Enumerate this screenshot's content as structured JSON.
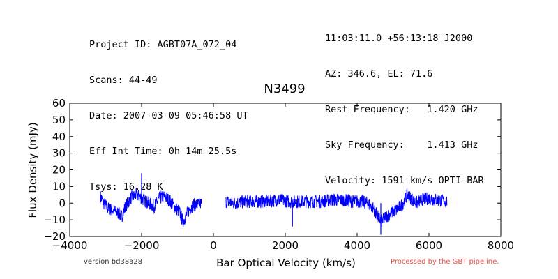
{
  "header_left": [
    "Project ID: AGBT07A_072_04",
    "Scans: 44-49",
    "Date: 2007-03-09 05:46:58 UT",
    "Eff Int Time: 0h 14m 25.5s",
    "Tsys: 16.28 K"
  ],
  "header_right": [
    "11:03:11.0 +56:13:18 J2000",
    "AZ: 346.6, EL: 71.6",
    "Rest Frequency:   1.420 GHz",
    "Sky Frequency:    1.413 GHz",
    "Velocity: 1591 km/s OPTI-BAR"
  ],
  "footer": {
    "version": "version bd38a28",
    "processed": "Processed by the GBT pipeline.",
    "processed_color": "#e8504a"
  },
  "chart_data": {
    "type": "line",
    "title": "N3499",
    "xlabel": "Bar Optical Velocity (km/s)",
    "ylabel": "Flux Density (mJy)",
    "xlim": [
      -4000,
      8000
    ],
    "ylim": [
      -20,
      60
    ],
    "xticks": [
      -4000,
      -2000,
      0,
      2000,
      4000,
      6000,
      8000
    ],
    "yticks": [
      -20,
      -10,
      0,
      10,
      20,
      30,
      40,
      50,
      60
    ],
    "xticklabels": [
      "−4000",
      "−2000",
      "0",
      "2000",
      "4000",
      "6000",
      "8000"
    ],
    "yticklabels": [
      "−20",
      "−10",
      "0",
      "10",
      "20",
      "30",
      "40",
      "50",
      "60"
    ],
    "grid": false,
    "line_color": "#0000ff",
    "series": [
      {
        "segments": [
          {
            "x": [
              -3150,
              -3050,
              -2950,
              -2800,
              -2650,
              -2550,
              -2450,
              -2300,
              -2150,
              -2050,
              -1950,
              -1800,
              -1650,
              -1500,
              -1350,
              -1200,
              -1050,
              -950,
              -850,
              -750,
              -650,
              -550,
              -450,
              -330
            ],
            "y": [
              4,
              0,
              -3,
              -4,
              -6,
              -8,
              -2,
              3,
              5,
              4,
              2,
              0,
              -2,
              3,
              4,
              1,
              -3,
              -5,
              -11,
              -7,
              -3,
              -1,
              -1,
              0
            ]
          },
          {
            "x": [
              350,
              600,
              900,
              1200,
              1500,
              1800,
              2100,
              2400,
              2700,
              3000,
              3300,
              3600,
              3900,
              4100,
              4300,
              4450,
              4600,
              4700,
              4800,
              4950,
              5100,
              5250,
              5400,
              5500,
              5650,
              5800,
              6000,
              6200,
              6500
            ],
            "y": [
              1,
              0,
              1,
              1,
              1,
              2,
              1,
              1,
              1,
              1,
              2,
              2,
              1,
              1,
              0,
              -3,
              -9,
              -11,
              -8,
              -6,
              -4,
              -1,
              5,
              3,
              0,
              2,
              3,
              2,
              1
            ]
          }
        ],
        "spikes": [
          {
            "x": -2000,
            "y": 18
          },
          {
            "x": 2200,
            "y": -14
          },
          {
            "x": 4660,
            "y": -19
          }
        ]
      }
    ]
  }
}
